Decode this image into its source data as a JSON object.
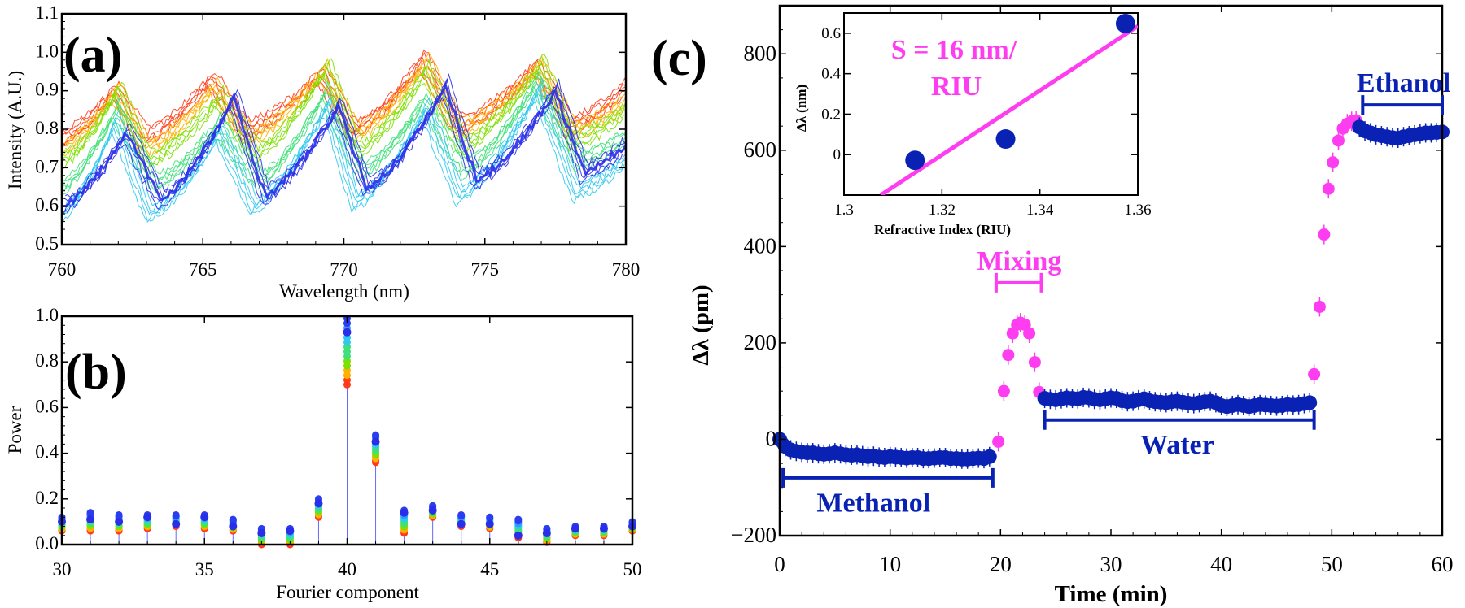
{
  "colors": {
    "blue": "#0a22b4",
    "pink": "#ff3df0",
    "spectrum": [
      "#ff3b1a",
      "#ffb000",
      "#7ee000",
      "#3fe07a",
      "#2ec8f0",
      "#2f6bff",
      "#2a2ee8"
    ]
  },
  "chart_data": [
    {
      "panel": "(a)",
      "type": "line",
      "xlabel": "Wavelength (nm)",
      "ylabel": "Intensity (A.U.)",
      "xlim": [
        760,
        780
      ],
      "ylim": [
        0.5,
        1.1
      ],
      "xticks": [
        "760",
        "765",
        "770",
        "775",
        "780"
      ],
      "yticks": [
        "0.5",
        "0.6",
        "0.7",
        "0.8",
        "0.9",
        "1.0",
        "1.1"
      ],
      "series": [
        {
          "color": "#ff3b1a",
          "points": [
            [
              760,
              0.78
            ],
            [
              761.9,
              0.9
            ],
            [
              762.9,
              0.78
            ],
            [
              765.3,
              0.93
            ],
            [
              766.5,
              0.8
            ],
            [
              769.2,
              0.94
            ],
            [
              770.3,
              0.8
            ],
            [
              772.8,
              0.98
            ],
            [
              774.0,
              0.81
            ],
            [
              776.8,
              0.96
            ],
            [
              778.0,
              0.81
            ],
            [
              780,
              0.91
            ]
          ]
        },
        {
          "color": "#ffb000",
          "points": [
            [
              760,
              0.75
            ],
            [
              761.9,
              0.9
            ],
            [
              763.0,
              0.75
            ],
            [
              765.4,
              0.91
            ],
            [
              766.6,
              0.78
            ],
            [
              769.3,
              0.95
            ],
            [
              770.4,
              0.79
            ],
            [
              772.9,
              0.97
            ],
            [
              774.1,
              0.8
            ],
            [
              776.9,
              0.96
            ],
            [
              778.1,
              0.8
            ],
            [
              780,
              0.87
            ]
          ]
        },
        {
          "color": "#7ee000",
          "points": [
            [
              760,
              0.72
            ],
            [
              762.0,
              0.9
            ],
            [
              763.0,
              0.72
            ],
            [
              765.6,
              0.88
            ],
            [
              766.9,
              0.74
            ],
            [
              769.4,
              0.96
            ],
            [
              770.5,
              0.75
            ],
            [
              772.9,
              0.95
            ],
            [
              774.2,
              0.76
            ],
            [
              777.0,
              0.97
            ],
            [
              778.1,
              0.77
            ],
            [
              780,
              0.85
            ]
          ]
        },
        {
          "color": "#3fe07a",
          "points": [
            [
              760,
              0.65
            ],
            [
              761.9,
              0.85
            ],
            [
              763.3,
              0.66
            ],
            [
              765.5,
              0.81
            ],
            [
              767.0,
              0.67
            ],
            [
              769.3,
              0.89
            ],
            [
              770.6,
              0.69
            ],
            [
              772.8,
              0.87
            ],
            [
              774.3,
              0.7
            ],
            [
              776.8,
              0.92
            ],
            [
              778.3,
              0.72
            ],
            [
              780,
              0.78
            ]
          ]
        },
        {
          "color": "#2ec8f0",
          "points": [
            [
              760,
              0.58
            ],
            [
              761.9,
              0.82
            ],
            [
              763.1,
              0.58
            ],
            [
              765.6,
              0.79
            ],
            [
              766.8,
              0.6
            ],
            [
              769.4,
              0.86
            ],
            [
              770.4,
              0.61
            ],
            [
              772.9,
              0.85
            ],
            [
              774.1,
              0.63
            ],
            [
              776.9,
              0.9
            ],
            [
              778.2,
              0.64
            ],
            [
              780,
              0.72
            ]
          ]
        },
        {
          "color": "#2a2ee8",
          "points": [
            [
              760,
              0.6
            ],
            [
              762.3,
              0.79
            ],
            [
              763.5,
              0.62
            ],
            [
              766.1,
              0.88
            ],
            [
              767.2,
              0.63
            ],
            [
              769.8,
              0.86
            ],
            [
              770.8,
              0.65
            ],
            [
              773.6,
              0.91
            ],
            [
              774.7,
              0.67
            ],
            [
              777.5,
              0.9
            ],
            [
              778.5,
              0.69
            ],
            [
              780,
              0.76
            ]
          ]
        }
      ]
    },
    {
      "panel": "(b)",
      "type": "scatter",
      "xlabel": "Fourier component",
      "ylabel": "Power",
      "xlim": [
        30,
        50
      ],
      "ylim": [
        0,
        1.0
      ],
      "xticks": [
        "30",
        "35",
        "40",
        "45",
        "50"
      ],
      "yticks": [
        "0.0",
        "0.2",
        "0.4",
        "0.6",
        "0.8",
        "1.0"
      ],
      "components": [
        30,
        31,
        32,
        33,
        34,
        35,
        36,
        37,
        38,
        39,
        40,
        41,
        42,
        43,
        44,
        45,
        46,
        47,
        48,
        49,
        50
      ],
      "min_power": [
        0.06,
        0.06,
        0.06,
        0.07,
        0.08,
        0.07,
        0.06,
        0.0,
        0.0,
        0.12,
        0.7,
        0.36,
        0.05,
        0.12,
        0.08,
        0.07,
        0.03,
        0.01,
        0.04,
        0.04,
        0.06
      ],
      "max_power": [
        0.12,
        0.14,
        0.13,
        0.13,
        0.13,
        0.13,
        0.11,
        0.07,
        0.07,
        0.2,
        0.99,
        0.48,
        0.15,
        0.17,
        0.13,
        0.12,
        0.11,
        0.07,
        0.08,
        0.08,
        0.1
      ],
      "final_power": [
        0.1,
        0.11,
        0.1,
        0.12,
        0.09,
        0.12,
        0.08,
        0.05,
        0.06,
        0.18,
        0.93,
        0.45,
        0.14,
        0.15,
        0.09,
        0.09,
        0.04,
        0.05,
        0.07,
        0.07,
        0.08
      ]
    },
    {
      "panel": "(c)",
      "type": "scatter",
      "xlabel": "Time (min)",
      "ylabel": "Δλ (pm)",
      "xlim": [
        0,
        60
      ],
      "ylim": [
        -200,
        900
      ],
      "xticks": [
        "0",
        "10",
        "20",
        "30",
        "40",
        "50",
        "60"
      ],
      "yticks": [
        "−200",
        "0",
        "200",
        "400",
        "600",
        "800"
      ],
      "series": [
        {
          "color": "#0a22b4",
          "t_start": 0,
          "t_step": 0.5,
          "values": [
            0,
            -15,
            -22,
            -25,
            -27,
            -28,
            -28,
            -30,
            -31,
            -30,
            -28,
            -30,
            -32,
            -33,
            -32,
            -34,
            -36,
            -35,
            -37,
            -38,
            -36,
            -37,
            -38,
            -39,
            -38,
            -38,
            -40,
            -40,
            -39,
            -38,
            -38,
            -40,
            -40,
            -41,
            -41,
            -40,
            -39,
            -40,
            -36
          ]
        },
        {
          "color": "#ff3df0",
          "t": [
            19.8,
            20.3,
            20.7,
            21.1,
            21.5,
            21.8,
            22.2,
            22.6,
            23.1,
            23.5
          ],
          "values": [
            -5,
            100,
            175,
            220,
            238,
            242,
            238,
            220,
            160,
            98
          ]
        },
        {
          "color": "#0a22b4",
          "t_start": 24,
          "t_step": 0.5,
          "values": [
            85,
            83,
            82,
            84,
            86,
            85,
            84,
            87,
            86,
            83,
            82,
            84,
            86,
            85,
            80,
            78,
            79,
            82,
            84,
            80,
            78,
            77,
            76,
            78,
            79,
            77,
            75,
            74,
            76,
            78,
            79,
            76,
            70,
            68,
            70,
            72,
            70,
            68,
            70,
            72,
            71,
            70,
            69,
            70,
            72,
            71,
            72,
            74,
            76
          ]
        },
        {
          "color": "#ff3df0",
          "t": [
            48.4,
            48.9,
            49.3,
            49.7,
            50.1,
            50.6,
            51.0,
            51.4,
            51.8,
            52.2
          ],
          "values": [
            135,
            275,
            425,
            520,
            575,
            620,
            645,
            655,
            660,
            662
          ]
        },
        {
          "color": "#0a22b4",
          "t_start": 52.5,
          "t_step": 0.5,
          "values": [
            648,
            640,
            636,
            632,
            630,
            628,
            626,
            625,
            628,
            630,
            632,
            634,
            636,
            636,
            637,
            638
          ]
        }
      ],
      "annotations": [
        {
          "label": "Methanol",
          "color": "#0a22b4",
          "range": [
            0.3,
            19.3
          ],
          "level": -80,
          "label_t": 8.5,
          "label_level": -150
        },
        {
          "label": "Mixing",
          "color": "#ff3df0",
          "range": [
            19.6,
            23.7
          ],
          "level": 325,
          "label_t": 21.7,
          "label_level": 420
        },
        {
          "label": "Water",
          "color": "#0a22b4",
          "range": [
            24.0,
            48.4
          ],
          "level": 40,
          "label_t": 36,
          "label_level": -30
        },
        {
          "label": "Ethanol",
          "color": "#0a22b4",
          "range": [
            52.8,
            60.0
          ],
          "level": 694,
          "label_t": 56.5,
          "label_level": 775
        }
      ]
    },
    {
      "panel": "(c) inset",
      "type": "scatter",
      "xlabel": "Refractive Index (RIU)",
      "ylabel": "Δλ (nm)",
      "xlim": [
        1.3,
        1.36
      ],
      "ylim": [
        -0.2,
        0.7
      ],
      "xticks": [
        "1.3",
        "1.32",
        "1.34",
        "1.36"
      ],
      "yticks": [
        "0",
        "0.2",
        "0.4",
        "0.6"
      ],
      "points": [
        [
          1.3145,
          -0.028
        ],
        [
          1.333,
          0.077
        ],
        [
          1.3575,
          0.648
        ]
      ],
      "fit": {
        "slope": 16,
        "intercept_at": [
          1.3075,
          -0.2
        ],
        "end": [
          1.36,
          0.635
        ],
        "color": "#ff3df0"
      },
      "annotation": [
        "S = 16 nm/",
        "RIU"
      ]
    }
  ]
}
